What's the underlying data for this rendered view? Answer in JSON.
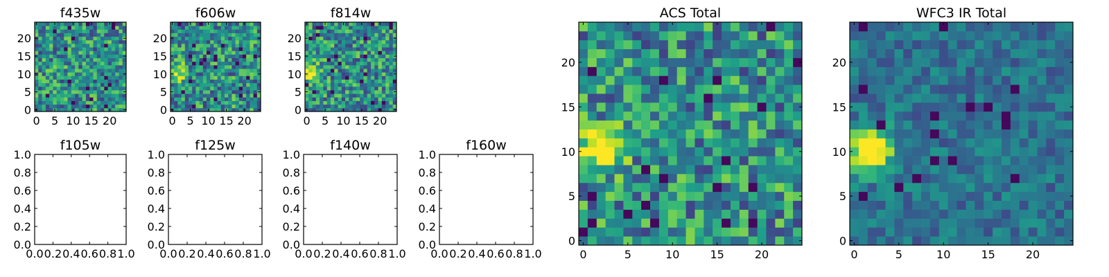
{
  "chart_data": [
    {
      "type": "heatmap",
      "title": "f435w",
      "panel": "thumb",
      "seed": 11,
      "hot": 0.45,
      "hotAmp": 0,
      "x_ticks": [
        "0",
        "5",
        "10",
        "15",
        "20"
      ],
      "y_ticks": [
        "0",
        "5",
        "10",
        "15",
        "20"
      ],
      "xlim": [
        -0.5,
        24.5
      ],
      "ylim": [
        -0.5,
        24.5
      ],
      "colormap": "viridis"
    },
    {
      "type": "heatmap",
      "title": "f606w",
      "panel": "thumb",
      "seed": 23,
      "hot": 0.42,
      "hotAmp": 0.45,
      "x_ticks": [
        "0",
        "5",
        "10",
        "15",
        "20"
      ],
      "y_ticks": [
        "0",
        "5",
        "10",
        "15",
        "20"
      ],
      "xlim": [
        -0.5,
        24.5
      ],
      "ylim": [
        -0.5,
        24.5
      ],
      "colormap": "viridis"
    },
    {
      "type": "heatmap",
      "title": "f814w",
      "panel": "thumb",
      "seed": 37,
      "hot": 0.36,
      "hotAmp": 0.6,
      "x_ticks": [
        "0",
        "5",
        "10",
        "15",
        "20"
      ],
      "y_ticks": [
        "0",
        "5",
        "10",
        "15",
        "20"
      ],
      "xlim": [
        -0.5,
        24.5
      ],
      "ylim": [
        -0.5,
        24.5
      ],
      "colormap": "viridis"
    },
    {
      "type": "empty",
      "title": "f105w",
      "panel": "blank",
      "x_ticks": [
        "0.0",
        "0.2",
        "0.4",
        "0.6",
        "0.8",
        "1.0"
      ],
      "y_ticks": [
        "0.0",
        "0.2",
        "0.4",
        "0.6",
        "0.8",
        "1.0"
      ],
      "xlim": [
        0,
        1
      ],
      "ylim": [
        0,
        1
      ]
    },
    {
      "type": "empty",
      "title": "f125w",
      "panel": "blank",
      "x_ticks": [
        "0.0",
        "0.2",
        "0.4",
        "0.6",
        "0.8",
        "1.0"
      ],
      "y_ticks": [
        "0.0",
        "0.2",
        "0.4",
        "0.6",
        "0.8",
        "1.0"
      ],
      "xlim": [
        0,
        1
      ],
      "ylim": [
        0,
        1
      ]
    },
    {
      "type": "empty",
      "title": "f140w",
      "panel": "blank",
      "x_ticks": [
        "0.0",
        "0.2",
        "0.4",
        "0.6",
        "0.8",
        "1.0"
      ],
      "y_ticks": [
        "0.0",
        "0.2",
        "0.4",
        "0.6",
        "0.8",
        "1.0"
      ],
      "xlim": [
        0,
        1
      ],
      "ylim": [
        0,
        1
      ]
    },
    {
      "type": "empty",
      "title": "f160w",
      "panel": "blank",
      "x_ticks": [
        "0.0",
        "0.2",
        "0.4",
        "0.6",
        "0.8",
        "1.0"
      ],
      "y_ticks": [
        "0.0",
        "0.2",
        "0.4",
        "0.6",
        "0.8",
        "1.0"
      ],
      "xlim": [
        0,
        1
      ],
      "ylim": [
        0,
        1
      ]
    },
    {
      "type": "heatmap",
      "title": "ACS Total",
      "panel": "big",
      "seed": 51,
      "hot": 0.45,
      "hotAmp": 0.7,
      "x_ticks": [
        "0",
        "5",
        "10",
        "15",
        "20"
      ],
      "y_ticks": [
        "0",
        "5",
        "10",
        "15",
        "20"
      ],
      "xlim": [
        -0.5,
        24.5
      ],
      "ylim": [
        -0.5,
        24.5
      ],
      "colormap": "viridis"
    },
    {
      "type": "heatmap",
      "title": "WFC3 IR Total",
      "panel": "big",
      "seed": 77,
      "hot": 0.28,
      "hotAmp": 0.85,
      "x_ticks": [
        "0",
        "5",
        "10",
        "15",
        "20"
      ],
      "y_ticks": [
        "0",
        "5",
        "10",
        "15",
        "20"
      ],
      "xlim": [
        -0.5,
        24.5
      ],
      "ylim": [
        -0.5,
        24.5
      ],
      "colormap": "viridis"
    }
  ]
}
